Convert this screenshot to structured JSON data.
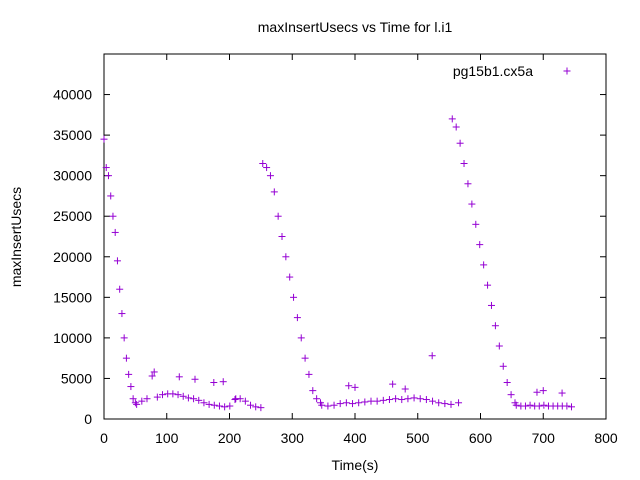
{
  "chart_data": {
    "type": "scatter",
    "title": "maxInsertUsecs vs Time for l.i1",
    "xlabel": "Time(s)",
    "ylabel": "maxInsertUsecs",
    "xlim": [
      0,
      800
    ],
    "ylim": [
      0,
      45000
    ],
    "x_ticks": [
      0,
      100,
      200,
      300,
      400,
      500,
      600,
      700,
      800
    ],
    "y_ticks": [
      0,
      5000,
      10000,
      15000,
      20000,
      25000,
      30000,
      35000,
      40000
    ],
    "legend_position": "top-right",
    "marker": "plus",
    "color": "#9400d3",
    "series": [
      {
        "name": "pg15b1.cx5a",
        "segments": [
          {
            "x0": 0,
            "x1": 50,
            "y": [
              34500,
              31000,
              30000,
              27500,
              25000,
              23000,
              19500,
              16000,
              13000,
              10000,
              7500,
              5500,
              4000,
              2500,
              2000
            ]
          },
          {
            "x0": 52,
            "x1": 250,
            "y": [
              1800,
              2200,
              2500,
              5300,
              2700,
              3000,
              3100,
              3100,
              3000,
              2800,
              2600,
              2500,
              2300,
              2000,
              1800,
              1700,
              1600,
              1500,
              1600,
              2400,
              2500,
              2200,
              1700,
              1500,
              1400
            ]
          },
          {
            "x0": 253,
            "x1": 345,
            "y": [
              31500,
              31000,
              30000,
              28000,
              25000,
              22500,
              20000,
              17500,
              15000,
              12500,
              10000,
              7500,
              5500,
              3500,
              2500,
              2000
            ]
          },
          {
            "x0": 347,
            "x1": 553,
            "y": [
              1700,
              1600,
              1700,
              1900,
              2000,
              1900,
              2000,
              2100,
              2200,
              2200,
              2300,
              2400,
              2500,
              2400,
              2500,
              2600,
              2500,
              2400,
              2200,
              2000,
              1900,
              1800
            ]
          },
          {
            "x0": 555,
            "x1": 655,
            "y": [
              37000,
              36000,
              34000,
              31500,
              29000,
              26500,
              24000,
              21500,
              19000,
              16500,
              14000,
              11500,
              9000,
              6500,
              4500,
              3000,
              2000
            ]
          },
          {
            "x0": 657,
            "x1": 745,
            "y": [
              1700,
              1600,
              1600,
              1700,
              1600,
              1600,
              1700,
              1600,
              1600,
              1600,
              1600,
              1600,
              1500
            ]
          }
        ],
        "outliers": [
          {
            "x": 80,
            "y": 5800
          },
          {
            "x": 120,
            "y": 5200
          },
          {
            "x": 145,
            "y": 4900
          },
          {
            "x": 175,
            "y": 4500
          },
          {
            "x": 190,
            "y": 4600
          },
          {
            "x": 210,
            "y": 2500
          },
          {
            "x": 390,
            "y": 4100
          },
          {
            "x": 400,
            "y": 3900
          },
          {
            "x": 460,
            "y": 4300
          },
          {
            "x": 480,
            "y": 3700
          },
          {
            "x": 523,
            "y": 7800
          },
          {
            "x": 700,
            "y": 3500
          },
          {
            "x": 690,
            "y": 3300
          },
          {
            "x": 730,
            "y": 3200
          },
          {
            "x": 565,
            "y": 2000
          }
        ]
      }
    ]
  }
}
